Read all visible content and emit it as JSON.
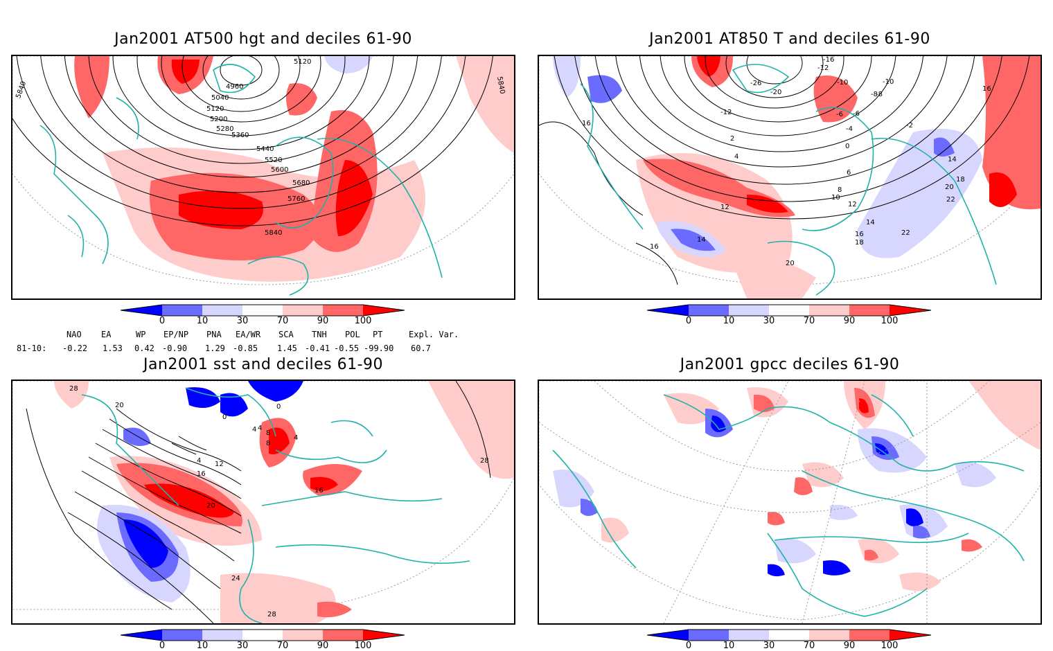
{
  "panels": [
    {
      "id": "hgt500",
      "title": "Jan2001 AT500 hgt and deciles 61-90",
      "contour_labels": [
        "4960",
        "5040",
        "5120",
        "5200",
        "5280",
        "5360",
        "5440",
        "5520",
        "5600",
        "5680",
        "5760",
        "5840",
        "5120",
        "5840",
        "5840"
      ]
    },
    {
      "id": "t850",
      "title": "Jan2001 AT850 T and deciles 61-90",
      "contour_labels": [
        "-26",
        "-20",
        "-12",
        "-10",
        "-8",
        "-6",
        "-4",
        "-2",
        "0",
        "2",
        "4",
        "6",
        "8",
        "10",
        "12",
        "14",
        "16",
        "18",
        "20",
        "22",
        "16",
        "16",
        "14",
        "12",
        "-6",
        "-8",
        "-10",
        "-12",
        "-16",
        "14",
        "16",
        "18",
        "20",
        "22"
      ]
    },
    {
      "id": "sst",
      "title": "Jan2001 sst and deciles 61-90",
      "contour_labels": [
        "28",
        "20",
        "0",
        "4",
        "8",
        "12",
        "16",
        "20",
        "24",
        "28",
        "28",
        "0",
        "4",
        "8",
        "16",
        "4",
        "4"
      ]
    },
    {
      "id": "gpcc",
      "title": "Jan2001 gpcc deciles 61-90",
      "contour_labels": []
    }
  ],
  "colorbar": {
    "ticks": [
      "0",
      "10",
      "30",
      "70",
      "90",
      "100"
    ],
    "colors": [
      "#0000ff",
      "#6b6bff",
      "#d6d6ff",
      "#ffffff",
      "#ffcccc",
      "#ff6666",
      "#ff0000"
    ]
  },
  "indices": {
    "headers": [
      "NAO",
      "EA",
      "WP",
      "EP/NP",
      "PNA",
      "EA/WR",
      "SCA",
      "TNH",
      "POL",
      "PT",
      "Expl. Var."
    ],
    "row_label": "81-10:",
    "values": [
      "-0.22",
      "1.53",
      "0.42",
      "-0.90",
      "1.29",
      "-0.85",
      "1.45",
      "-0.41",
      "-0.55",
      "-99.90",
      "60.7"
    ]
  },
  "colors": {
    "coastline": "#20b2aa",
    "strong_pos": "#ff0000",
    "mod_pos": "#ff6666",
    "weak_pos": "#ffcccc",
    "weak_neg": "#d6d6ff",
    "mod_neg": "#6b6bff",
    "strong_neg": "#0000ff"
  }
}
